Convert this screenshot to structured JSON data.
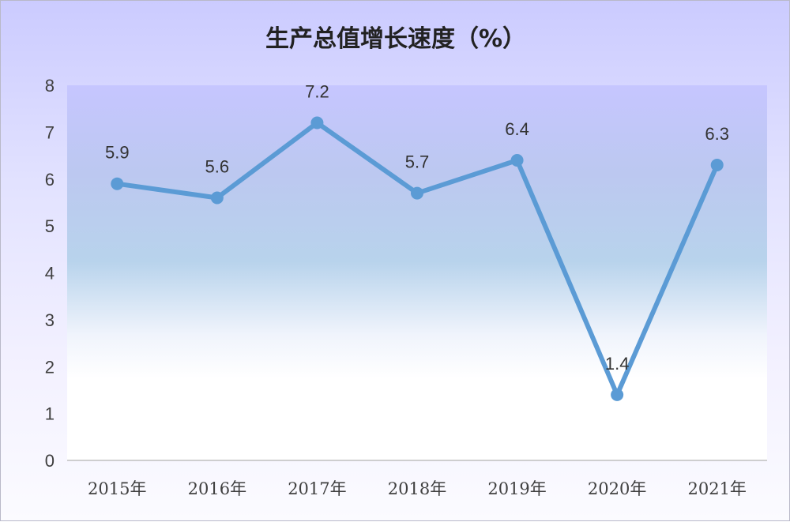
{
  "chart_data": {
    "type": "line",
    "title": "生产总值增长速度（%）",
    "categories": [
      "2015年",
      "2016年",
      "2017年",
      "2018年",
      "2019年",
      "2020年",
      "2021年"
    ],
    "series": [
      {
        "values": [
          5.9,
          5.6,
          7.2,
          5.7,
          6.4,
          1.4,
          6.3
        ],
        "labels": [
          "5.9",
          "5.6",
          "7.2",
          "5.7",
          "6.4",
          "1.4",
          "6.3"
        ]
      }
    ],
    "yticks": [
      "0",
      "1",
      "2",
      "3",
      "4",
      "5",
      "6",
      "7",
      "8"
    ],
    "ylim": [
      0,
      8
    ],
    "grid": false,
    "legend": "none",
    "colors": {
      "line": "#5b9bd5",
      "axis": "#bfbfbf"
    }
  }
}
